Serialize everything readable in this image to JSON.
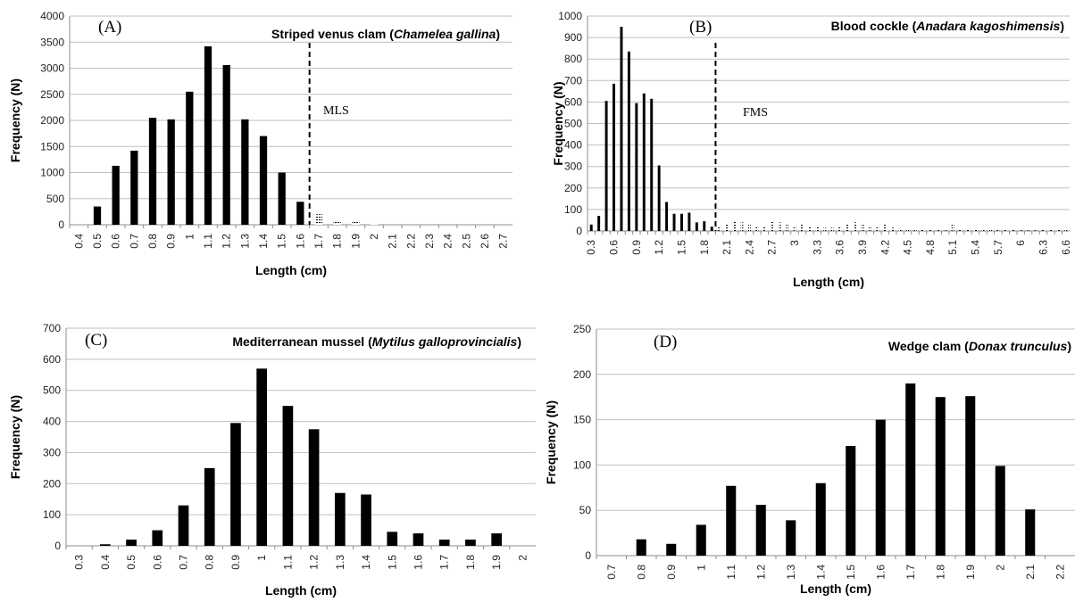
{
  "chart_data": [
    {
      "panel_id": "A",
      "type": "bar",
      "letter": "(A)",
      "title_plain": "Striped venus clam (",
      "title_italic": "Chamelea gallina",
      "title_close": ")",
      "xlabel": "Length (cm)",
      "ylabel": "Frequency (N)",
      "ylim": [
        0,
        4000
      ],
      "yticks": [
        0,
        500,
        1000,
        1500,
        2000,
        2500,
        3000,
        3500,
        4000
      ],
      "grid": true,
      "categories": [
        "0.4",
        "0.5",
        "0.6",
        "0.7",
        "0.8",
        "0.9",
        "1",
        "1.1",
        "1.2",
        "1.3",
        "1.4",
        "1.5",
        "1.6",
        "1.7",
        "1.8",
        "1.9",
        "2",
        "2.1",
        "2.2",
        "2.3",
        "2.4",
        "2.5",
        "2.6",
        "2.7"
      ],
      "values": [
        0,
        350,
        1130,
        1420,
        2050,
        2020,
        2550,
        3420,
        3060,
        2020,
        1700,
        1000,
        440,
        200,
        80,
        60,
        30,
        0,
        0,
        0,
        0,
        0,
        0,
        0
      ],
      "threshold": {
        "label": "MLS",
        "x_between": [
          "1.6",
          "1.7"
        ]
      },
      "hatched_from": "1.7"
    },
    {
      "panel_id": "B",
      "type": "bar",
      "letter": "(B)",
      "title_plain": "Blood cockle (",
      "title_italic": "Anadara kagoshimensis",
      "title_close": ")",
      "xlabel": "Length (cm)",
      "ylabel": "Frequency (N)",
      "ylim": [
        0,
        1000
      ],
      "yticks": [
        0,
        100,
        200,
        300,
        400,
        500,
        600,
        700,
        800,
        900,
        1000
      ],
      "grid": true,
      "categories": [
        "0.3",
        "0.4",
        "0.5",
        "0.6",
        "0.7",
        "0.8",
        "0.9",
        "1",
        "1.1",
        "1.2",
        "1.3",
        "1.4",
        "1.5",
        "1.6",
        "1.7",
        "1.8",
        "1.9",
        "2",
        "2.1",
        "2.2",
        "2.3",
        "2.4",
        "2.5",
        "2.6",
        "2.7",
        "2.8",
        "2.9",
        "3",
        "3.1",
        "3.2",
        "3.3",
        "3.4",
        "3.5",
        "3.6",
        "3.7",
        "3.8",
        "3.9",
        "4",
        "4.1",
        "4.2",
        "4.3",
        "4.4",
        "4.5",
        "4.6",
        "4.7",
        "4.8",
        "4.9",
        "5",
        "5.1",
        "5.2",
        "5.3",
        "5.4",
        "5.5",
        "5.6",
        "5.7",
        "5.8",
        "5.9",
        "6",
        "6.1",
        "6.2",
        "6.3",
        "6.4",
        "6.5",
        "6.6"
      ],
      "tick_labels_shown": [
        "0.3",
        "0.6",
        "0.9",
        "1.2",
        "1.5",
        "1.8",
        "2.1",
        "2.4",
        "2.7",
        "3",
        "3.3",
        "3.6",
        "3.9",
        "4.2",
        "4.5",
        "4.8",
        "5.1",
        "5.4",
        "5.7",
        "6",
        "6.3",
        "6.6"
      ],
      "values": [
        30,
        70,
        605,
        685,
        950,
        835,
        595,
        640,
        615,
        305,
        135,
        80,
        80,
        85,
        40,
        45,
        20,
        20,
        35,
        45,
        40,
        35,
        20,
        25,
        45,
        40,
        35,
        25,
        30,
        25,
        20,
        15,
        15,
        25,
        35,
        40,
        35,
        25,
        25,
        35,
        15,
        10,
        10,
        10,
        10,
        5,
        5,
        5,
        35,
        5,
        5,
        5,
        5,
        5,
        5,
        5,
        5,
        5,
        5,
        5,
        5,
        5,
        5,
        5
      ],
      "threshold": {
        "label": "FMS",
        "x_between": [
          "1.9",
          "2"
        ]
      },
      "hatched_from": "2"
    },
    {
      "panel_id": "C",
      "type": "bar",
      "letter": "(C)",
      "title_plain": "Mediterranean mussel (",
      "title_italic": "Mytilus galloprovincialis",
      "title_close": ")",
      "xlabel": "Length (cm)",
      "ylabel": "Frequency (N)",
      "ylim": [
        0,
        700
      ],
      "yticks": [
        0,
        100,
        200,
        300,
        400,
        500,
        600,
        700
      ],
      "grid": true,
      "categories": [
        "0.3",
        "0.4",
        "0.5",
        "0.6",
        "0.7",
        "0.8",
        "0.9",
        "1",
        "1.1",
        "1.2",
        "1.3",
        "1.4",
        "1.5",
        "1.6",
        "1.7",
        "1.8",
        "1.9",
        "2"
      ],
      "values": [
        0,
        5,
        20,
        50,
        130,
        250,
        395,
        570,
        450,
        375,
        170,
        165,
        45,
        40,
        20,
        20,
        40,
        0
      ]
    },
    {
      "panel_id": "D",
      "type": "bar",
      "letter": "(D)",
      "title_plain": "Wedge clam (",
      "title_italic": "Donax trunculus",
      "title_close": ")",
      "xlabel": "Length (cm)",
      "ylabel": "Frequency (N)",
      "ylim": [
        0,
        250
      ],
      "yticks": [
        0,
        50,
        100,
        150,
        200,
        250
      ],
      "grid": true,
      "categories": [
        "0.7",
        "0.8",
        "0.9",
        "1",
        "1.1",
        "1.2",
        "1.3",
        "1.4",
        "1.5",
        "1.6",
        "1.7",
        "1.8",
        "1.9",
        "2",
        "2.1",
        "2.2"
      ],
      "values": [
        0,
        18,
        13,
        34,
        77,
        56,
        39,
        80,
        121,
        150,
        190,
        175,
        176,
        99,
        51,
        0
      ]
    }
  ]
}
